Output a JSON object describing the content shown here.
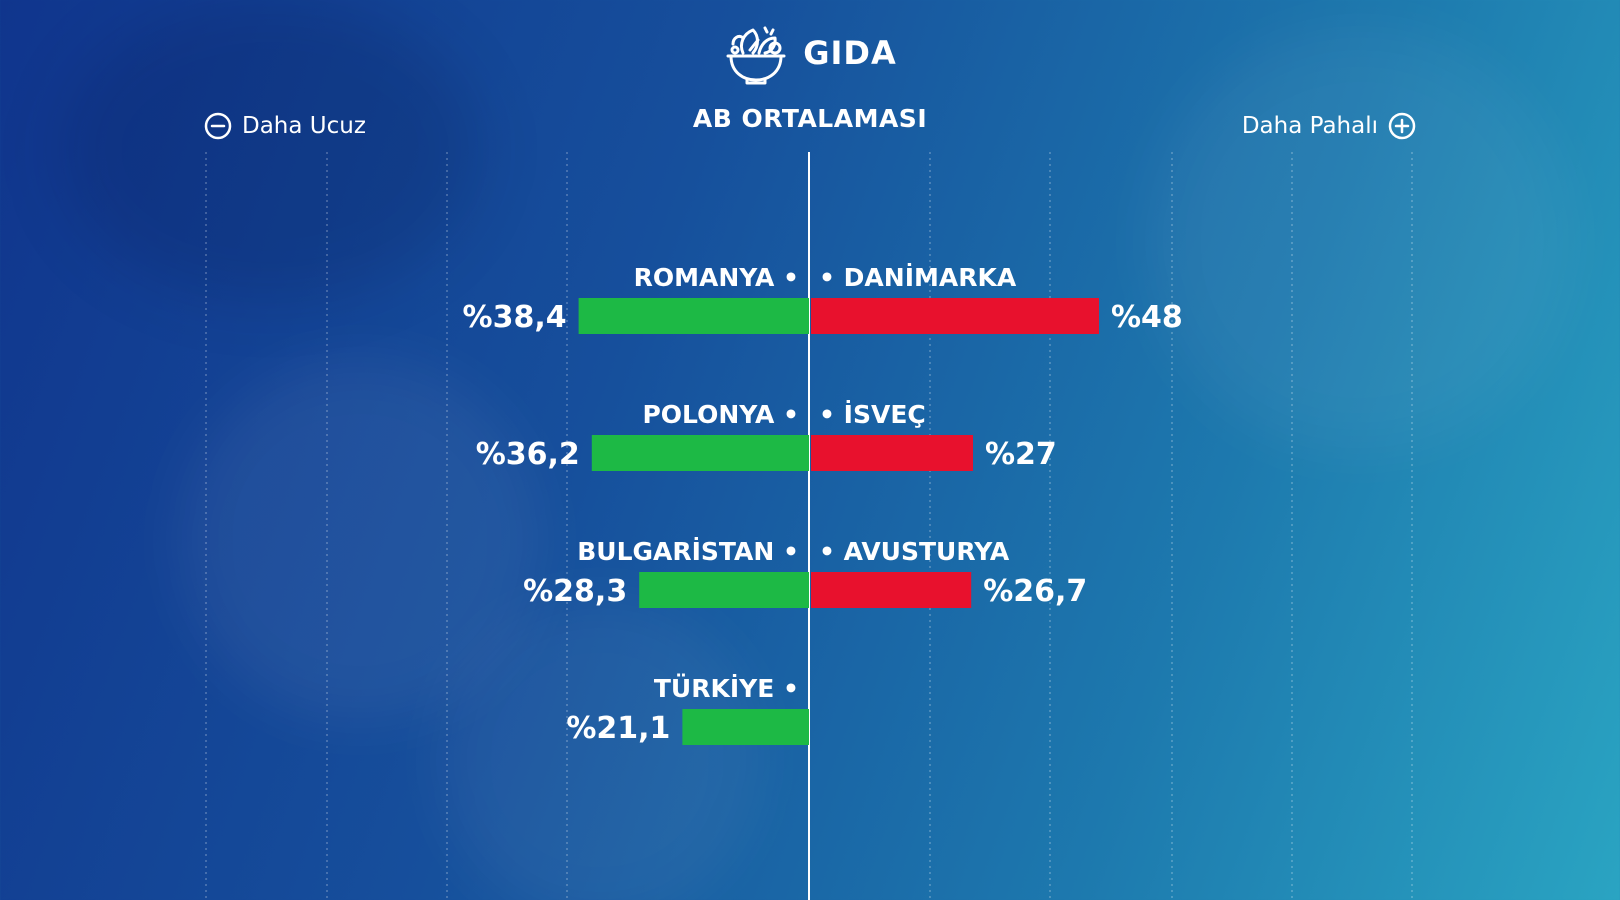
{
  "header": {
    "title": "GIDA",
    "icon": "salad-bowl-icon"
  },
  "legend": {
    "cheaper_label": "Daha Ucuz",
    "cheaper_icon": "minus-circle-icon",
    "pricier_label": "Daha Pahalı",
    "pricier_icon": "plus-circle-icon"
  },
  "chart_data": {
    "type": "bar",
    "title": "GIDA",
    "subtitle": "AB ORTALAMASI",
    "orientation": "horizontal-diverging",
    "baseline_label": "AB ORTALAMASI",
    "unit_prefix": "%",
    "xlim": [
      -100,
      100
    ],
    "grid": true,
    "left": {
      "label": "Daha Ucuz",
      "color": "#1db945",
      "categories": [
        "ROMANYA",
        "POLONYA",
        "BULGARİSTAN",
        "TÜRKİYE"
      ],
      "values": [
        38.4,
        36.2,
        28.3,
        21.1
      ],
      "labels": [
        "%38,4",
        "%36,2",
        "%28,3",
        "%21,1"
      ]
    },
    "right": {
      "label": "Daha Pahalı",
      "color": "#e8112d",
      "categories": [
        "DANİMARKA",
        "İSVEÇ",
        "AVUSTURYA"
      ],
      "values": [
        48,
        27,
        26.7
      ],
      "labels": [
        "%48",
        "%27",
        "%26,7"
      ]
    }
  }
}
